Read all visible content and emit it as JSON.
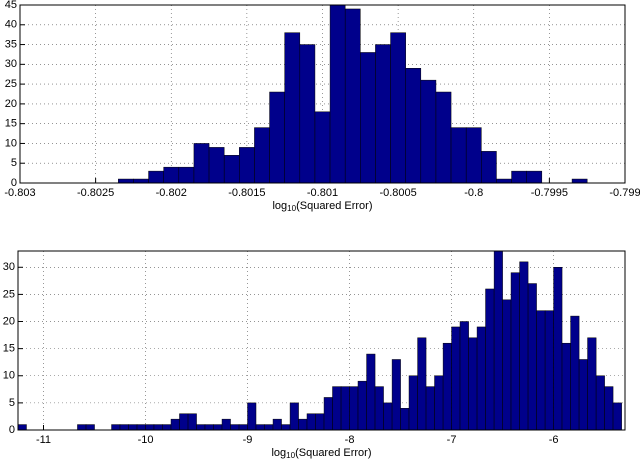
{
  "chart_data": [
    {
      "type": "histogram",
      "color": "#00008b",
      "grid": true,
      "xlabel": [
        "log",
        "10",
        "(Squared Error)"
      ],
      "bins": [
        -0.80235,
        -0.80225,
        -0.80215,
        -0.80205,
        -0.80195,
        -0.80185,
        -0.80175,
        -0.80165,
        -0.80155,
        -0.80145,
        -0.80135,
        -0.80125,
        -0.80115,
        -0.80105,
        -0.80095,
        -0.80085,
        -0.80075,
        -0.80065,
        -0.80055,
        -0.80045,
        -0.80035,
        -0.80025,
        -0.80015,
        -0.80005,
        -0.79995,
        -0.79985,
        -0.79975,
        -0.79965,
        -0.79955,
        -0.79945,
        -0.79935,
        -0.79925
      ],
      "values": [
        1,
        1,
        3,
        4,
        4,
        10,
        9,
        7,
        9,
        14,
        23,
        38,
        35,
        18,
        45,
        44,
        33,
        35,
        38,
        29,
        26,
        23,
        14,
        14,
        8,
        1,
        3,
        3,
        0,
        0,
        1
      ],
      "xlim": [
        -0.803,
        -0.799
      ],
      "xticks": [
        -0.803,
        -0.8025,
        -0.802,
        -0.8015,
        -0.801,
        -0.8005,
        -0.8,
        -0.7995,
        -0.799
      ],
      "ylim": [
        0,
        45
      ],
      "yticks": [
        0,
        5,
        10,
        15,
        20,
        25,
        30,
        35,
        40,
        45
      ]
    },
    {
      "type": "histogram",
      "color": "#00008b",
      "grid": true,
      "xlabel": [
        "log",
        "10",
        "(Squared Error)"
      ],
      "bins": [
        -11.25,
        -11.167,
        -11.083,
        -11,
        -10.917,
        -10.833,
        -10.75,
        -10.667,
        -10.583,
        -10.5,
        -10.417,
        -10.333,
        -10.25,
        -10.167,
        -10.083,
        -10,
        -9.917,
        -9.833,
        -9.75,
        -9.667,
        -9.583,
        -9.5,
        -9.417,
        -9.333,
        -9.25,
        -9.167,
        -9.083,
        -9,
        -8.917,
        -8.833,
        -8.75,
        -8.667,
        -8.583,
        -8.5,
        -8.417,
        -8.333,
        -8.25,
        -8.167,
        -8.083,
        -8,
        -7.917,
        -7.833,
        -7.75,
        -7.667,
        -7.583,
        -7.5,
        -7.417,
        -7.333,
        -7.25,
        -7.167,
        -7.083,
        -7,
        -6.917,
        -6.833,
        -6.75,
        -6.667,
        -6.583,
        -6.5,
        -6.417,
        -6.333,
        -6.25,
        -6.167,
        -6.083,
        -6,
        -5.917,
        -5.833,
        -5.75,
        -5.667,
        -5.583,
        -5.5,
        -5.417,
        -5.333
      ],
      "values": [
        1,
        0,
        0,
        0,
        0,
        0,
        0,
        1,
        1,
        0,
        0,
        1,
        1,
        1,
        1,
        1,
        1,
        1,
        2,
        3,
        3,
        1,
        1,
        1,
        2,
        1,
        1,
        5,
        1,
        1,
        2,
        1,
        5,
        2,
        3,
        3,
        6,
        8,
        8,
        8,
        9,
        14,
        8,
        5,
        13,
        4,
        10,
        17,
        8,
        10,
        16,
        19,
        20,
        17,
        19,
        26,
        33,
        24,
        29,
        31,
        27,
        22,
        22,
        30,
        16,
        21,
        13,
        17,
        10,
        8,
        5
      ],
      "xlim": [
        -11.25,
        -5.3
      ],
      "xticks": [
        -11,
        -10,
        -9,
        -8,
        -7,
        -6
      ],
      "ylim": [
        0,
        33
      ],
      "yticks": [
        0,
        5,
        10,
        15,
        20,
        25,
        30
      ]
    }
  ]
}
